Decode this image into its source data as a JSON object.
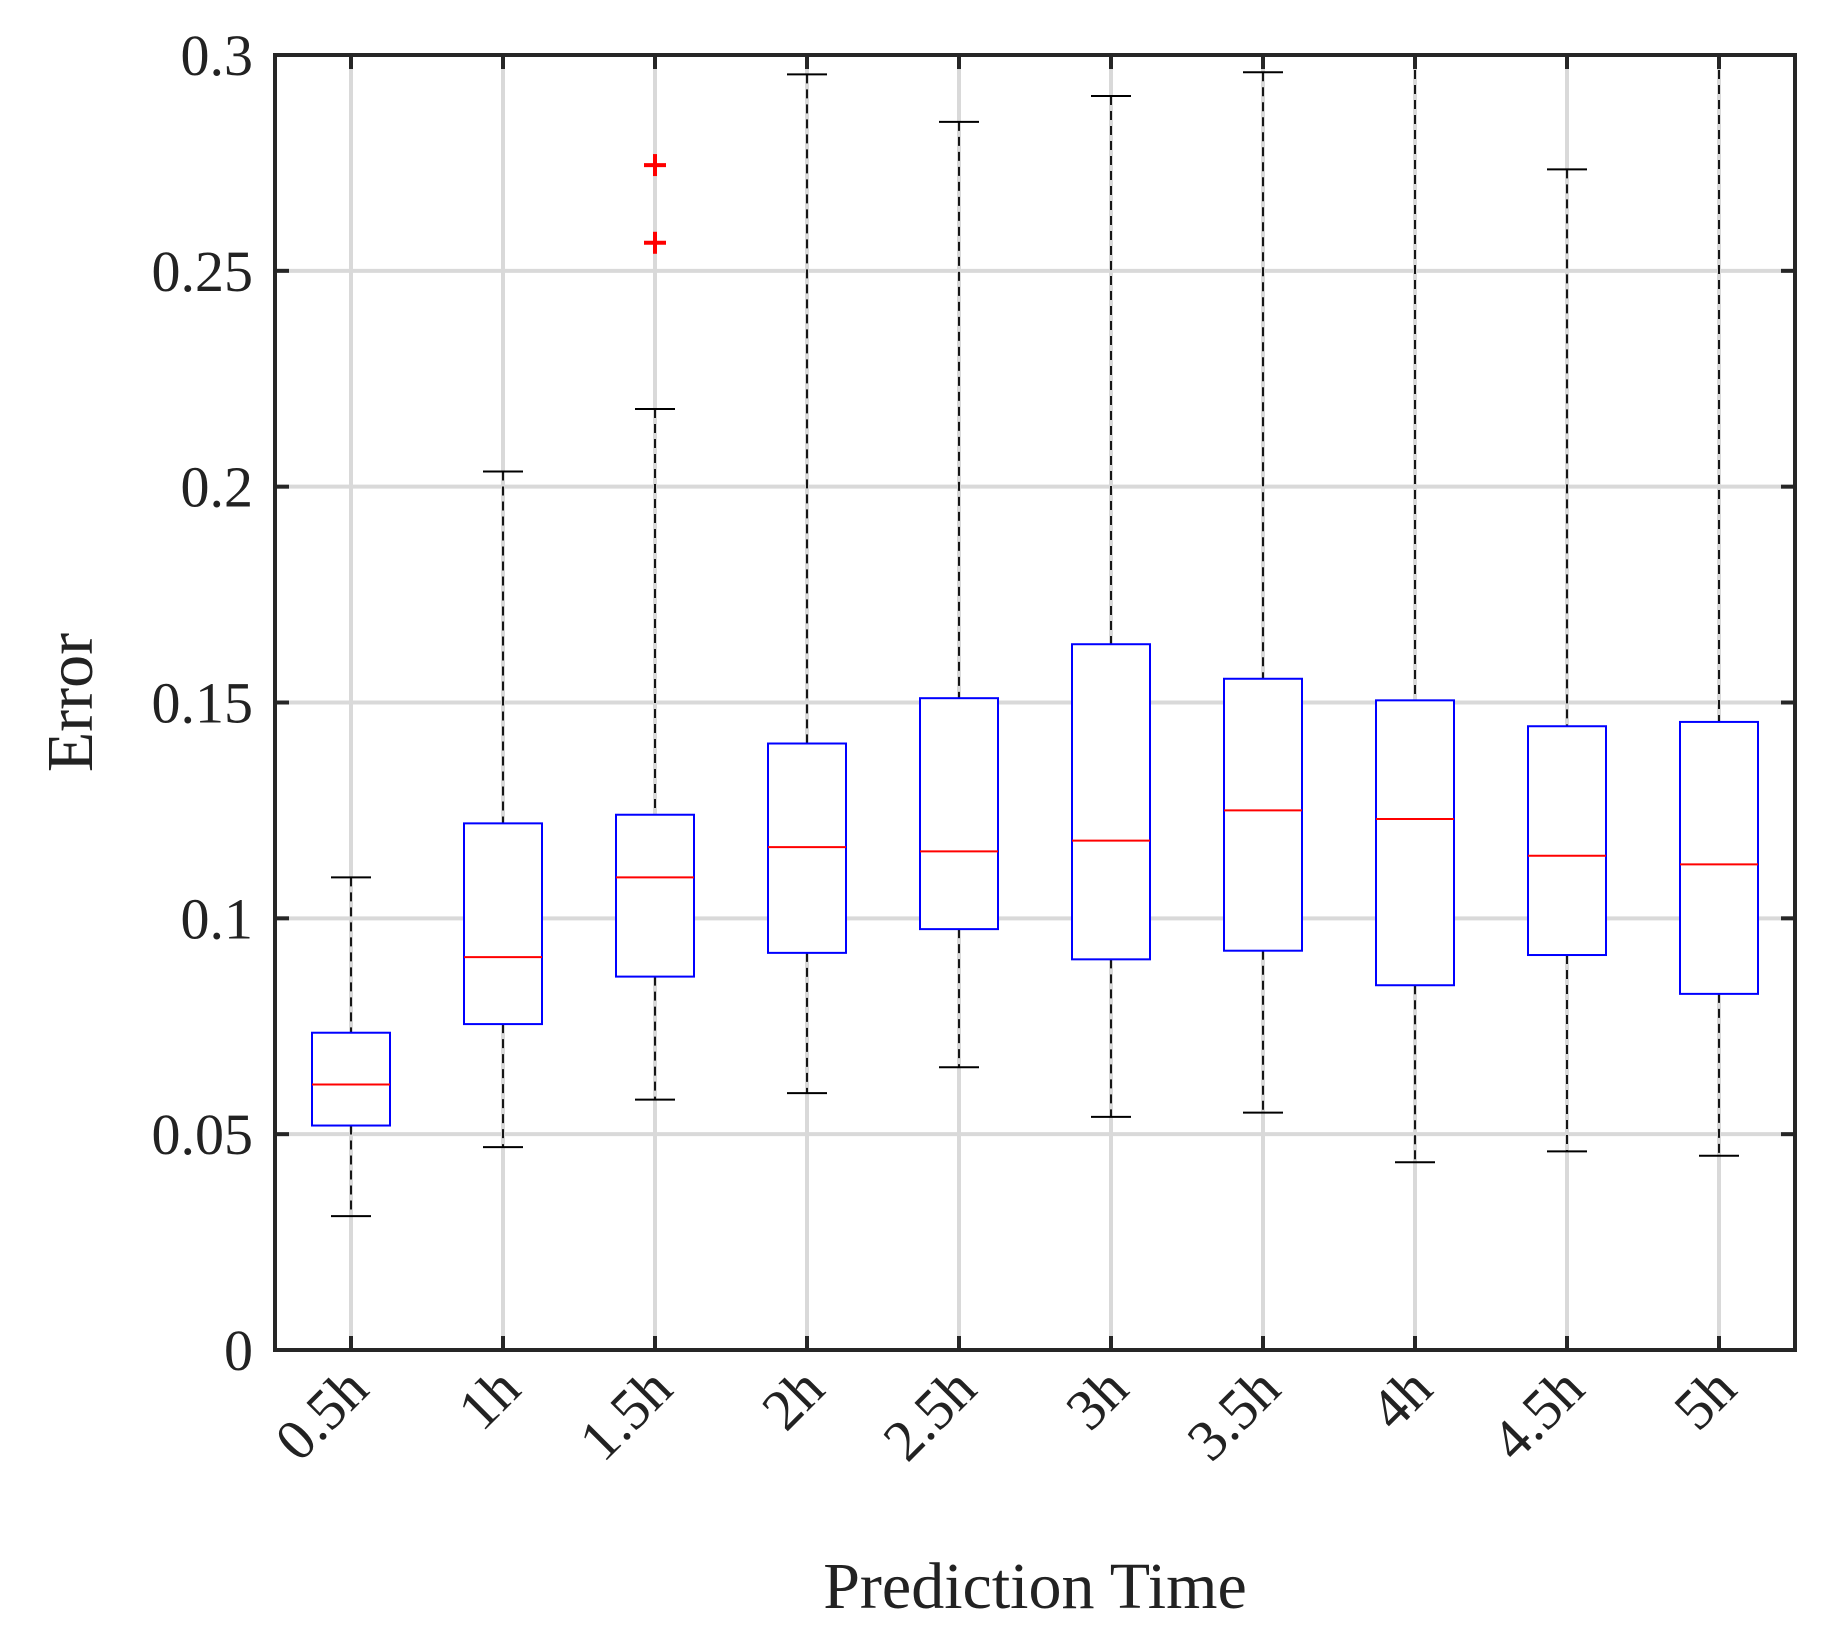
{
  "chart_data": {
    "type": "boxplot",
    "title": "",
    "xlabel": "Prediction Time",
    "ylabel": "Error",
    "ylim": [
      0,
      0.3
    ],
    "yticks": [
      0,
      0.05,
      0.1,
      0.15,
      0.2,
      0.25,
      0.3
    ],
    "ytick_labels": [
      "0",
      "0.05",
      "0.1",
      "0.15",
      "0.2",
      "0.25",
      "0.3"
    ],
    "grid": true,
    "categories": [
      "0.5h",
      "1h",
      "1.5h",
      "2h",
      "2.5h",
      "3h",
      "3.5h",
      "4h",
      "4.5h",
      "5h"
    ],
    "boxes": [
      {
        "category": "0.5h",
        "whisker_low": 0.031,
        "q1": 0.052,
        "median": 0.0615,
        "q3": 0.0735,
        "whisker_high": 0.1095,
        "outliers": []
      },
      {
        "category": "1h",
        "whisker_low": 0.047,
        "q1": 0.0755,
        "median": 0.091,
        "q3": 0.122,
        "whisker_high": 0.2035,
        "outliers": []
      },
      {
        "category": "1.5h",
        "whisker_low": 0.058,
        "q1": 0.0865,
        "median": 0.1095,
        "q3": 0.124,
        "whisker_high": 0.218,
        "outliers": [
          0.2565,
          0.2745
        ]
      },
      {
        "category": "2h",
        "whisker_low": 0.0595,
        "q1": 0.092,
        "median": 0.1165,
        "q3": 0.1405,
        "whisker_high": 0.2955,
        "outliers": []
      },
      {
        "category": "2.5h",
        "whisker_low": 0.0655,
        "q1": 0.0975,
        "median": 0.1155,
        "q3": 0.151,
        "whisker_high": 0.2845,
        "outliers": []
      },
      {
        "category": "3h",
        "whisker_low": 0.054,
        "q1": 0.0905,
        "median": 0.118,
        "q3": 0.1635,
        "whisker_high": 0.2905,
        "outliers": []
      },
      {
        "category": "3.5h",
        "whisker_low": 0.055,
        "q1": 0.0925,
        "median": 0.125,
        "q3": 0.1555,
        "whisker_high": 0.296,
        "outliers": []
      },
      {
        "category": "4h",
        "whisker_low": 0.0435,
        "q1": 0.0845,
        "median": 0.123,
        "q3": 0.1505,
        "whisker_high": 0.3,
        "outliers": []
      },
      {
        "category": "4.5h",
        "whisker_low": 0.046,
        "q1": 0.0915,
        "median": 0.1145,
        "q3": 0.1445,
        "whisker_high": 0.2735,
        "outliers": []
      },
      {
        "category": "5h",
        "whisker_low": 0.045,
        "q1": 0.0825,
        "median": 0.1125,
        "q3": 0.1455,
        "whisker_high": 0.3,
        "outliers": []
      }
    ],
    "colors": {
      "box": "#0000ff",
      "median": "#ff0000",
      "whisker": "#000000",
      "outlier": "#ff0000",
      "grid": "#d9d9d9",
      "axes": "#262626"
    }
  }
}
